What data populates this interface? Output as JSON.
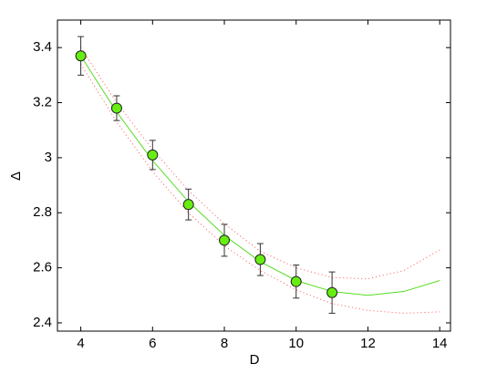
{
  "chart_data": {
    "type": "scatter",
    "xlabel": "D",
    "ylabel": "Δ",
    "xlim": [
      3.35,
      14.3
    ],
    "ylim": [
      2.37,
      3.5
    ],
    "xticks": [
      4,
      6,
      8,
      10,
      12,
      14
    ],
    "yticks": [
      2.4,
      2.6,
      2.8,
      3,
      3.2,
      3.4
    ],
    "grid": false,
    "series": [
      {
        "type": "line",
        "style": "dotted",
        "color": "#ff5555",
        "x": [
          4,
          5,
          6,
          7,
          8,
          9,
          10,
          11,
          12,
          13,
          14
        ],
        "values": [
          3.4,
          3.2,
          3.03,
          2.88,
          2.76,
          2.66,
          2.6,
          2.565,
          2.56,
          2.59,
          2.665
        ]
      },
      {
        "type": "line",
        "style": "dotted",
        "color": "#ff5555",
        "x": [
          4,
          5,
          6,
          7,
          8,
          9,
          10,
          11,
          12,
          13,
          14
        ],
        "values": [
          3.34,
          3.13,
          2.95,
          2.8,
          2.68,
          2.59,
          2.52,
          2.47,
          2.445,
          2.435,
          2.44
        ]
      },
      {
        "type": "line",
        "style": "solid",
        "color": "#55dd22",
        "x": [
          4,
          5,
          6,
          7,
          8,
          9,
          10,
          11,
          12,
          13,
          14
        ],
        "values": [
          3.37,
          3.166,
          2.99,
          2.84,
          2.718,
          2.622,
          2.554,
          2.514,
          2.5,
          2.514,
          2.554
        ]
      },
      {
        "type": "scatter",
        "color": "#66ee11",
        "x": [
          4,
          5,
          6,
          7,
          8,
          9,
          10,
          11
        ],
        "values": [
          3.37,
          3.18,
          3.01,
          2.83,
          2.7,
          2.63,
          2.55,
          2.51
        ],
        "errors": [
          0.07,
          0.045,
          0.053,
          0.056,
          0.058,
          0.058,
          0.06,
          0.075
        ]
      }
    ]
  }
}
